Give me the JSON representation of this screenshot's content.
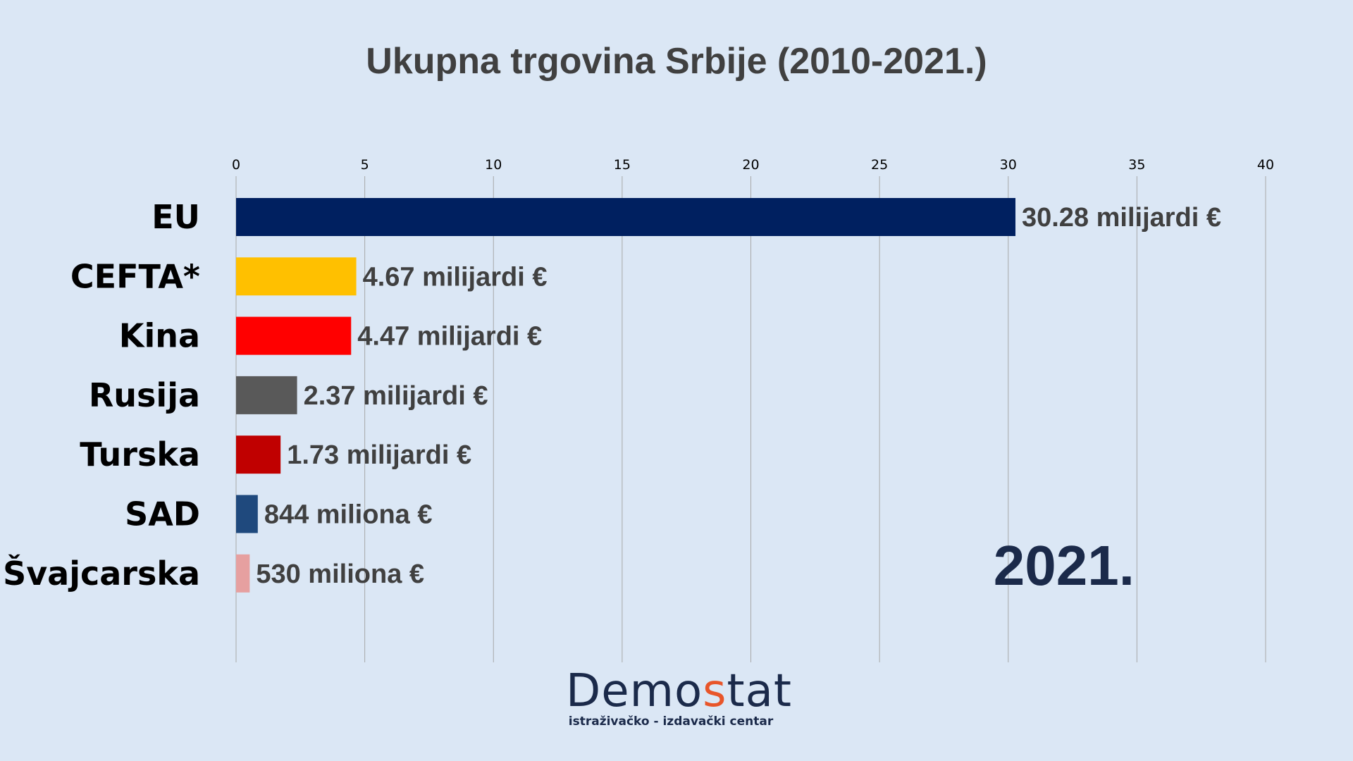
{
  "chart_data": {
    "type": "bar",
    "orientation": "horizontal",
    "title": "Ukupna trgovina Srbije (2010-2021.)",
    "categories": [
      "EU",
      "CEFTA*",
      "Kina",
      "Rusija",
      "Turska",
      "SAD",
      "Švajcarska"
    ],
    "values": [
      30.28,
      4.67,
      4.47,
      2.37,
      1.73,
      0.844,
      0.53
    ],
    "data_labels": [
      "30.28 milijardi €",
      "4.67 milijardi €",
      "4.47 milijardi €",
      "2.37 milijardi €",
      "1.73 milijardi €",
      "844 miliona €",
      "530 miliona €"
    ],
    "colors": [
      "#002060",
      "#ffc000",
      "#ff0000",
      "#595959",
      "#c00000",
      "#1f497d",
      "#e6a0a0"
    ],
    "xlim": [
      0,
      40
    ],
    "x_ticks": [
      0,
      5,
      10,
      15,
      20,
      25,
      30,
      35,
      40
    ],
    "x_axis_position": "top",
    "grid": true,
    "annotation": "2021."
  },
  "logo": {
    "word_start": "Demo",
    "word_accent": "s",
    "word_end": "tat",
    "subtitle": "istraživačko - izdavački  centar"
  }
}
